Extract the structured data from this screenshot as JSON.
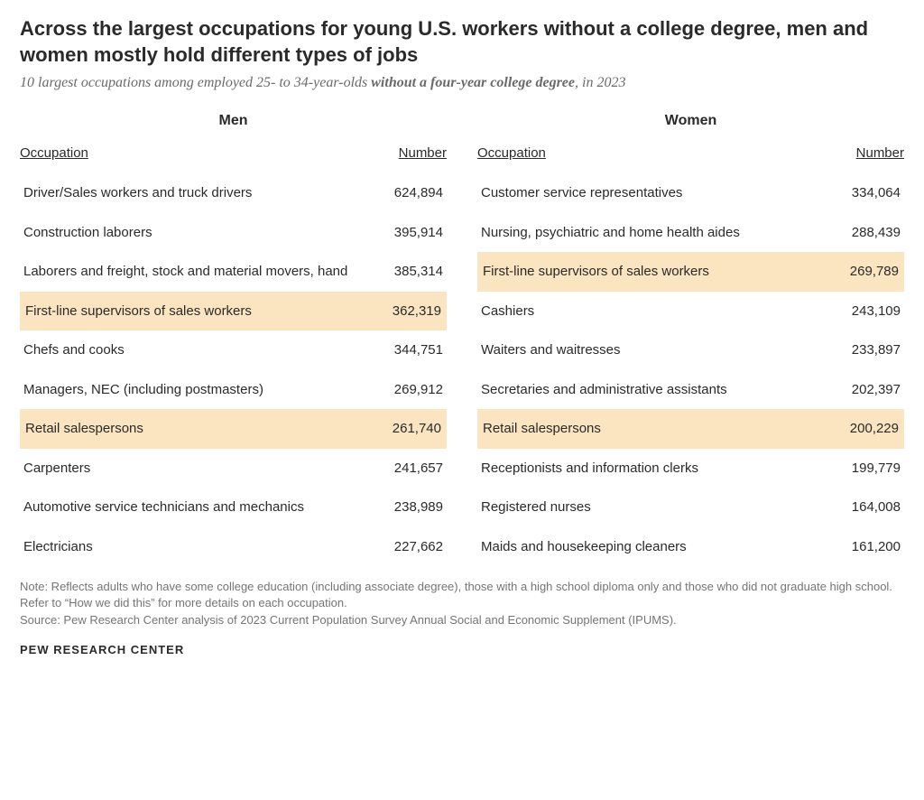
{
  "title": "Across the largest occupations for young U.S. workers without a college degree, men and women mostly hold different types of jobs",
  "subtitle_pre": "10 largest occupations among employed 25- to 34-year-olds ",
  "subtitle_bold": "without a four-year college degree",
  "subtitle_post": ", in 2023",
  "headers": {
    "occ": "Occupation",
    "num": "Number"
  },
  "highlight_color": "#fae5c0",
  "columns": {
    "men": {
      "label": "Men",
      "rows": [
        {
          "occ": "Driver/Sales workers and truck drivers",
          "num": "624,894",
          "hl": false
        },
        {
          "occ": "Construction laborers",
          "num": "395,914",
          "hl": false
        },
        {
          "occ": "Laborers and freight, stock and material movers, hand",
          "num": "385,314",
          "hl": false
        },
        {
          "occ": "First-line supervisors of sales workers",
          "num": "362,319",
          "hl": true
        },
        {
          "occ": "Chefs and cooks",
          "num": "344,751",
          "hl": false
        },
        {
          "occ": "Managers, NEC (including postmasters)",
          "num": "269,912",
          "hl": false
        },
        {
          "occ": "Retail salespersons",
          "num": "261,740",
          "hl": true
        },
        {
          "occ": "Carpenters",
          "num": "241,657",
          "hl": false
        },
        {
          "occ": "Automotive service technicians and mechanics",
          "num": "238,989",
          "hl": false
        },
        {
          "occ": "Electricians",
          "num": "227,662",
          "hl": false
        }
      ]
    },
    "women": {
      "label": "Women",
      "rows": [
        {
          "occ": "Customer service representatives",
          "num": "334,064",
          "hl": false
        },
        {
          "occ": "Nursing, psychiatric and home health aides",
          "num": "288,439",
          "hl": false
        },
        {
          "occ": "First-line supervisors of sales workers",
          "num": "269,789",
          "hl": true
        },
        {
          "occ": "Cashiers",
          "num": "243,109",
          "hl": false
        },
        {
          "occ": "Waiters and waitresses",
          "num": "233,897",
          "hl": false
        },
        {
          "occ": "Secretaries and administrative assistants",
          "num": "202,397",
          "hl": false
        },
        {
          "occ": "Retail salespersons",
          "num": "200,229",
          "hl": true
        },
        {
          "occ": "Receptionists and information clerks",
          "num": "199,779",
          "hl": false
        },
        {
          "occ": "Registered nurses",
          "num": "164,008",
          "hl": false
        },
        {
          "occ": "Maids and housekeeping cleaners",
          "num": "161,200",
          "hl": false
        }
      ]
    }
  },
  "note": "Note: Reflects adults who have some college education (including associate degree), those with a high school diploma only and those who did not graduate high school. Refer to “How we did this” for more details on each occupation.",
  "source": "Source: Pew Research Center analysis of 2023 Current Population Survey Annual Social and Economic Supplement (IPUMS).",
  "brand": "PEW RESEARCH CENTER"
}
